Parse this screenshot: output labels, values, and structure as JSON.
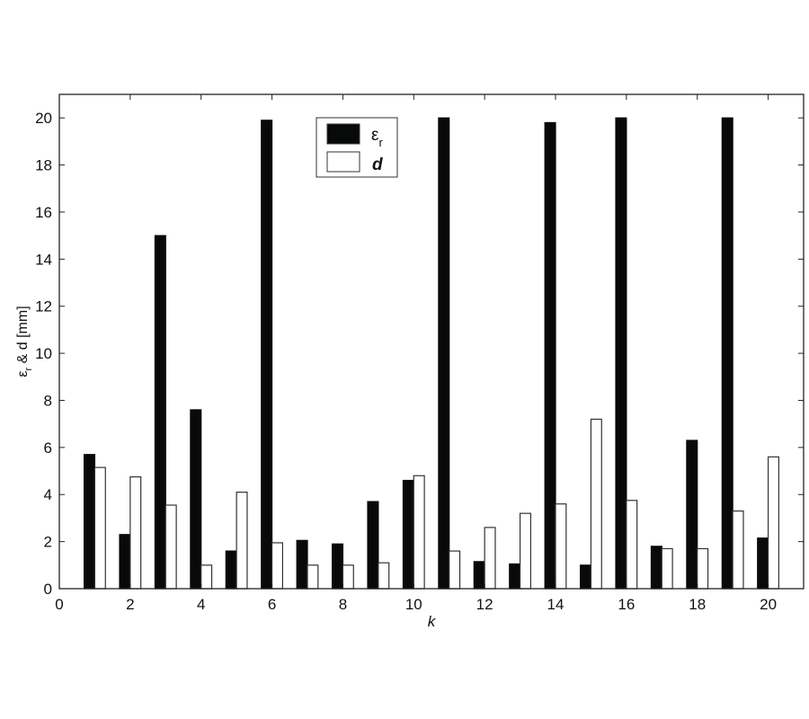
{
  "chart_data": {
    "type": "bar",
    "title": "",
    "xlabel": "k",
    "ylabel": "ε_r & d [mm]",
    "ylabel_main": "ε",
    "ylabel_sub": "r",
    "ylabel_rest": " & d [mm]",
    "xlim": [
      0,
      21
    ],
    "ylim": [
      0,
      21
    ],
    "xticks": [
      0,
      2,
      4,
      6,
      8,
      10,
      12,
      14,
      16,
      18,
      20
    ],
    "yticks": [
      0,
      2,
      4,
      6,
      8,
      10,
      12,
      14,
      16,
      18,
      20
    ],
    "grid": false,
    "legend_position": "top-center",
    "categories": [
      1,
      2,
      3,
      4,
      5,
      6,
      7,
      8,
      9,
      10,
      11,
      12,
      13,
      14,
      15,
      16,
      17,
      18,
      19,
      20
    ],
    "series": [
      {
        "name": "ε_r",
        "legend_main": "ε",
        "legend_sub": "r",
        "color": "#070a08",
        "values": [
          5.7,
          2.3,
          15.0,
          7.6,
          1.6,
          19.9,
          2.05,
          1.9,
          3.7,
          4.6,
          20.0,
          1.15,
          1.05,
          19.8,
          1.0,
          20.0,
          1.8,
          6.3,
          20.0,
          2.15
        ]
      },
      {
        "name": "d",
        "legend_main": "d",
        "legend_sub": "",
        "color": "#ffffff",
        "values": [
          5.15,
          4.75,
          3.55,
          1.0,
          4.1,
          1.95,
          1.0,
          1.0,
          1.1,
          4.8,
          1.6,
          2.6,
          3.2,
          3.6,
          7.2,
          3.75,
          1.7,
          1.7,
          3.3,
          5.6
        ]
      }
    ]
  }
}
